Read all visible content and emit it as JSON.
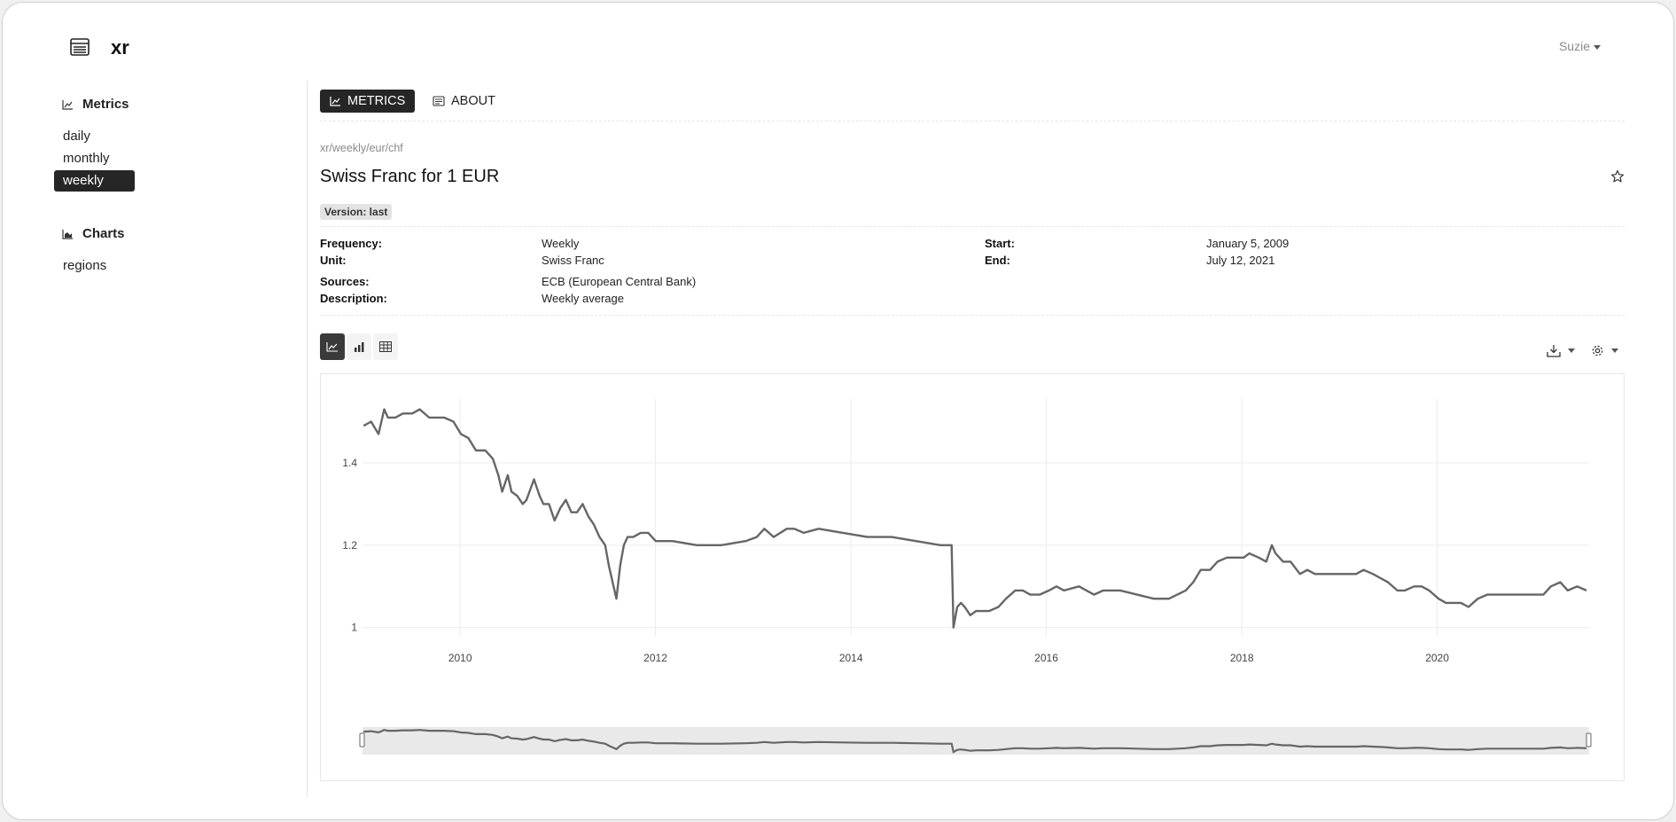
{
  "app": {
    "name": "xr",
    "user": "Suzie"
  },
  "sidebar": {
    "sections": [
      {
        "title": "Metrics",
        "icon": "line-chart-icon",
        "items": [
          {
            "label": "daily",
            "active": false
          },
          {
            "label": "monthly",
            "active": false
          },
          {
            "label": "weekly",
            "active": true
          }
        ]
      },
      {
        "title": "Charts",
        "icon": "area-chart-icon",
        "items": [
          {
            "label": "regions",
            "active": false
          }
        ]
      }
    ]
  },
  "tabs": [
    {
      "label": "METRICS",
      "icon": "line-chart-icon",
      "active": true
    },
    {
      "label": "ABOUT",
      "icon": "document-icon",
      "active": false
    }
  ],
  "breadcrumb": "xr/weekly/eur/chf",
  "title": "Swiss Franc for 1 EUR",
  "badge": "Version: last",
  "meta": {
    "frequency_label": "Frequency:",
    "frequency": "Weekly",
    "unit_label": "Unit:",
    "unit": "Swiss Franc",
    "sources_label": "Sources:",
    "sources": "ECB (European Central Bank)",
    "description_label": "Description:",
    "description": "Weekly average",
    "start_label": "Start:",
    "start": "January 5, 2009",
    "end_label": "End:",
    "end": "July 12, 2021"
  },
  "view_buttons": [
    {
      "icon": "line-chart-icon",
      "active": true
    },
    {
      "icon": "bar-chart-icon",
      "active": false
    },
    {
      "icon": "table-icon",
      "active": false
    }
  ],
  "toolbar": {
    "download_icon": "download-icon",
    "settings_icon": "gear-icon"
  },
  "colors": {
    "line": "#666666",
    "active_bg": "#262626"
  },
  "chart_data": {
    "type": "line",
    "x_type": "date",
    "x": [
      "2009-01-05",
      "2009-02-02",
      "2009-03-02",
      "2009-03-23",
      "2009-04-06",
      "2009-05-04",
      "2009-06-01",
      "2009-07-06",
      "2009-08-03",
      "2009-09-07",
      "2009-10-05",
      "2009-11-02",
      "2009-12-07",
      "2010-01-04",
      "2010-02-01",
      "2010-03-01",
      "2010-04-05",
      "2010-05-03",
      "2010-05-24",
      "2010-06-07",
      "2010-06-28",
      "2010-07-12",
      "2010-08-02",
      "2010-08-23",
      "2010-09-06",
      "2010-10-04",
      "2010-10-25",
      "2010-11-08",
      "2010-11-29",
      "2010-12-20",
      "2011-01-10",
      "2011-01-31",
      "2011-02-21",
      "2011-03-14",
      "2011-04-04",
      "2011-04-25",
      "2011-05-16",
      "2011-06-06",
      "2011-06-27",
      "2011-07-11",
      "2011-07-25",
      "2011-08-08",
      "2011-08-22",
      "2011-09-05",
      "2011-09-19",
      "2011-10-10",
      "2011-11-07",
      "2011-12-05",
      "2012-01-02",
      "2012-03-05",
      "2012-06-04",
      "2012-09-03",
      "2012-12-03",
      "2013-01-14",
      "2013-02-11",
      "2013-03-18",
      "2013-05-06",
      "2013-06-03",
      "2013-07-08",
      "2013-09-02",
      "2013-12-02",
      "2014-03-03",
      "2014-06-02",
      "2014-09-01",
      "2014-12-01",
      "2015-01-12",
      "2015-01-19",
      "2015-02-02",
      "2015-02-16",
      "2015-03-02",
      "2015-03-23",
      "2015-04-13",
      "2015-05-04",
      "2015-06-01",
      "2015-07-06",
      "2015-08-03",
      "2015-09-07",
      "2015-10-05",
      "2015-11-02",
      "2015-12-07",
      "2016-01-11",
      "2016-02-08",
      "2016-03-07",
      "2016-05-02",
      "2016-06-27",
      "2016-08-01",
      "2016-10-03",
      "2016-12-05",
      "2017-02-06",
      "2017-04-03",
      "2017-06-05",
      "2017-07-03",
      "2017-07-31",
      "2017-09-04",
      "2017-10-02",
      "2017-11-06",
      "2017-12-04",
      "2018-01-08",
      "2018-01-29",
      "2018-03-05",
      "2018-04-02",
      "2018-04-23",
      "2018-05-07",
      "2018-06-04",
      "2018-07-02",
      "2018-08-06",
      "2018-09-03",
      "2018-10-01",
      "2018-11-05",
      "2018-12-03",
      "2019-01-07",
      "2019-02-04",
      "2019-03-04",
      "2019-04-01",
      "2019-05-06",
      "2019-06-03",
      "2019-07-01",
      "2019-08-05",
      "2019-09-02",
      "2019-10-07",
      "2019-11-04",
      "2019-12-02",
      "2020-01-06",
      "2020-02-03",
      "2020-03-02",
      "2020-03-30",
      "2020-04-27",
      "2020-06-01",
      "2020-07-06",
      "2020-08-03",
      "2020-09-07",
      "2020-10-05",
      "2020-11-02",
      "2020-12-07",
      "2021-01-04",
      "2021-02-01",
      "2021-03-01",
      "2021-04-05",
      "2021-05-03",
      "2021-06-07",
      "2021-07-12"
    ],
    "values": [
      1.49,
      1.5,
      1.47,
      1.53,
      1.51,
      1.51,
      1.52,
      1.52,
      1.53,
      1.51,
      1.51,
      1.51,
      1.5,
      1.47,
      1.46,
      1.43,
      1.43,
      1.41,
      1.37,
      1.33,
      1.37,
      1.33,
      1.32,
      1.3,
      1.31,
      1.36,
      1.32,
      1.3,
      1.3,
      1.26,
      1.29,
      1.31,
      1.28,
      1.28,
      1.3,
      1.27,
      1.25,
      1.22,
      1.2,
      1.15,
      1.11,
      1.07,
      1.15,
      1.2,
      1.22,
      1.22,
      1.23,
      1.23,
      1.21,
      1.21,
      1.2,
      1.2,
      1.21,
      1.22,
      1.24,
      1.22,
      1.24,
      1.24,
      1.23,
      1.24,
      1.23,
      1.22,
      1.22,
      1.21,
      1.2,
      1.2,
      1.0,
      1.05,
      1.06,
      1.05,
      1.03,
      1.04,
      1.04,
      1.04,
      1.05,
      1.07,
      1.09,
      1.09,
      1.08,
      1.08,
      1.09,
      1.1,
      1.09,
      1.1,
      1.08,
      1.09,
      1.09,
      1.08,
      1.07,
      1.07,
      1.09,
      1.11,
      1.14,
      1.14,
      1.16,
      1.17,
      1.17,
      1.17,
      1.18,
      1.17,
      1.16,
      1.2,
      1.18,
      1.16,
      1.16,
      1.13,
      1.14,
      1.13,
      1.13,
      1.13,
      1.13,
      1.13,
      1.13,
      1.14,
      1.13,
      1.12,
      1.11,
      1.09,
      1.09,
      1.1,
      1.1,
      1.09,
      1.07,
      1.06,
      1.06,
      1.06,
      1.05,
      1.07,
      1.08,
      1.08,
      1.08,
      1.08,
      1.08,
      1.08,
      1.08,
      1.08,
      1.1,
      1.11,
      1.09,
      1.1,
      1.09
    ],
    "y_ticks": [
      1,
      1.2,
      1.4
    ],
    "x_ticks": [
      "2010",
      "2012",
      "2014",
      "2016",
      "2018",
      "2020"
    ],
    "ylim": [
      0.98,
      1.555
    ],
    "xlim": [
      "2009-01-01",
      "2021-07-22"
    ],
    "grid": true,
    "range_slider": true
  }
}
